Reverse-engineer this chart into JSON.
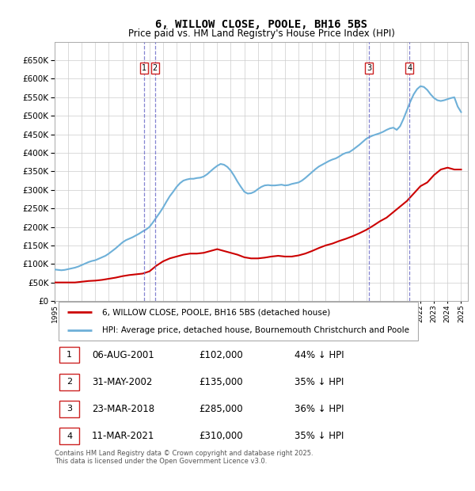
{
  "title": "6, WILLOW CLOSE, POOLE, BH16 5BS",
  "subtitle": "Price paid vs. HM Land Registry's House Price Index (HPI)",
  "ylim": [
    0,
    700000
  ],
  "yticks": [
    0,
    50000,
    100000,
    150000,
    200000,
    250000,
    300000,
    350000,
    400000,
    450000,
    500000,
    550000,
    600000,
    650000
  ],
  "xlim_start": 1995.0,
  "xlim_end": 2025.5,
  "background_color": "#ffffff",
  "grid_color": "#cccccc",
  "hpi_color": "#6eb0d8",
  "price_color": "#cc0000",
  "legend1": "6, WILLOW CLOSE, POOLE, BH16 5BS (detached house)",
  "legend2": "HPI: Average price, detached house, Bournemouth Christchurch and Poole",
  "table": [
    {
      "num": 1,
      "date": "06-AUG-2001",
      "price": "£102,000",
      "pct": "44% ↓ HPI"
    },
    {
      "num": 2,
      "date": "31-MAY-2002",
      "price": "£135,000",
      "pct": "35% ↓ HPI"
    },
    {
      "num": 3,
      "date": "23-MAR-2018",
      "price": "£285,000",
      "pct": "36% ↓ HPI"
    },
    {
      "num": 4,
      "date": "11-MAR-2021",
      "price": "£310,000",
      "pct": "35% ↓ HPI"
    }
  ],
  "footer": "Contains HM Land Registry data © Crown copyright and database right 2025.\nThis data is licensed under the Open Government Licence v3.0.",
  "vlines": [
    {
      "x": 2001.59,
      "num": "1"
    },
    {
      "x": 2002.41,
      "num": "2"
    },
    {
      "x": 2018.22,
      "num": "3"
    },
    {
      "x": 2021.19,
      "num": "4"
    }
  ],
  "hpi_x": [
    1995.0,
    1995.25,
    1995.5,
    1995.75,
    1996.0,
    1996.25,
    1996.5,
    1996.75,
    1997.0,
    1997.25,
    1997.5,
    1997.75,
    1998.0,
    1998.25,
    1998.5,
    1998.75,
    1999.0,
    1999.25,
    1999.5,
    1999.75,
    2000.0,
    2000.25,
    2000.5,
    2000.75,
    2001.0,
    2001.25,
    2001.5,
    2001.75,
    2002.0,
    2002.25,
    2002.5,
    2002.75,
    2003.0,
    2003.25,
    2003.5,
    2003.75,
    2004.0,
    2004.25,
    2004.5,
    2004.75,
    2005.0,
    2005.25,
    2005.5,
    2005.75,
    2006.0,
    2006.25,
    2006.5,
    2006.75,
    2007.0,
    2007.25,
    2007.5,
    2007.75,
    2008.0,
    2008.25,
    2008.5,
    2008.75,
    2009.0,
    2009.25,
    2009.5,
    2009.75,
    2010.0,
    2010.25,
    2010.5,
    2010.75,
    2011.0,
    2011.25,
    2011.5,
    2011.75,
    2012.0,
    2012.25,
    2012.5,
    2012.75,
    2013.0,
    2013.25,
    2013.5,
    2013.75,
    2014.0,
    2014.25,
    2014.5,
    2014.75,
    2015.0,
    2015.25,
    2015.5,
    2015.75,
    2016.0,
    2016.25,
    2016.5,
    2016.75,
    2017.0,
    2017.25,
    2017.5,
    2017.75,
    2018.0,
    2018.25,
    2018.5,
    2018.75,
    2019.0,
    2019.25,
    2019.5,
    2019.75,
    2020.0,
    2020.25,
    2020.5,
    2020.75,
    2021.0,
    2021.25,
    2021.5,
    2021.75,
    2022.0,
    2022.25,
    2022.5,
    2022.75,
    2023.0,
    2023.25,
    2023.5,
    2023.75,
    2024.0,
    2024.25,
    2024.5,
    2024.75,
    2025.0
  ],
  "hpi_y": [
    85000,
    84000,
    83000,
    84000,
    86000,
    88000,
    90000,
    93000,
    97000,
    101000,
    105000,
    108000,
    110000,
    114000,
    118000,
    122000,
    128000,
    135000,
    142000,
    150000,
    158000,
    164000,
    168000,
    172000,
    177000,
    182000,
    188000,
    193000,
    200000,
    212000,
    225000,
    238000,
    252000,
    268000,
    283000,
    295000,
    308000,
    318000,
    325000,
    328000,
    330000,
    330000,
    332000,
    333000,
    336000,
    342000,
    350000,
    358000,
    365000,
    370000,
    368000,
    362000,
    352000,
    338000,
    322000,
    308000,
    295000,
    290000,
    291000,
    295000,
    302000,
    308000,
    312000,
    313000,
    312000,
    312000,
    313000,
    314000,
    312000,
    313000,
    316000,
    318000,
    320000,
    325000,
    332000,
    340000,
    348000,
    356000,
    363000,
    368000,
    373000,
    378000,
    382000,
    385000,
    390000,
    396000,
    400000,
    402000,
    408000,
    415000,
    422000,
    430000,
    438000,
    443000,
    447000,
    450000,
    453000,
    457000,
    462000,
    466000,
    468000,
    462000,
    472000,
    492000,
    515000,
    538000,
    558000,
    572000,
    580000,
    578000,
    570000,
    558000,
    548000,
    542000,
    540000,
    542000,
    545000,
    548000,
    550000,
    525000,
    510000
  ],
  "price_x": [
    1995.0,
    1995.5,
    1996.0,
    1996.5,
    1997.0,
    1997.5,
    1998.0,
    1998.5,
    1999.0,
    1999.5,
    2000.0,
    2000.5,
    2001.0,
    2001.5,
    2002.0,
    2002.5,
    2003.0,
    2003.5,
    2004.0,
    2004.5,
    2005.0,
    2005.5,
    2006.0,
    2006.5,
    2007.0,
    2007.5,
    2008.0,
    2008.5,
    2009.0,
    2009.5,
    2010.0,
    2010.5,
    2011.0,
    2011.5,
    2012.0,
    2012.5,
    2013.0,
    2013.5,
    2014.0,
    2014.5,
    2015.0,
    2015.5,
    2016.0,
    2016.5,
    2017.0,
    2017.5,
    2018.0,
    2018.5,
    2019.0,
    2019.5,
    2020.0,
    2020.5,
    2021.0,
    2021.5,
    2022.0,
    2022.5,
    2023.0,
    2023.5,
    2024.0,
    2024.5,
    2025.0
  ],
  "price_y": [
    50000,
    50000,
    50000,
    50000,
    52000,
    54000,
    55000,
    57000,
    60000,
    63000,
    67000,
    70000,
    72000,
    74000,
    80000,
    95000,
    107000,
    115000,
    120000,
    125000,
    128000,
    128000,
    130000,
    135000,
    140000,
    135000,
    130000,
    125000,
    118000,
    115000,
    115000,
    117000,
    120000,
    122000,
    120000,
    120000,
    123000,
    128000,
    135000,
    143000,
    150000,
    155000,
    162000,
    168000,
    175000,
    183000,
    192000,
    203000,
    215000,
    225000,
    240000,
    255000,
    270000,
    290000,
    310000,
    320000,
    340000,
    355000,
    360000,
    355000,
    355000
  ]
}
